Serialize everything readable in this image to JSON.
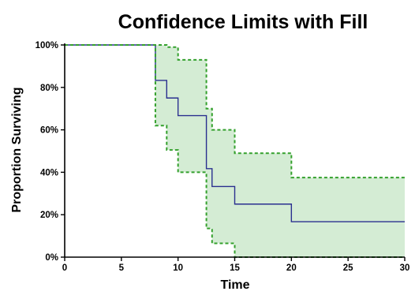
{
  "chart_data": {
    "type": "line",
    "title": "Confidence Limits with Fill",
    "xlabel": "Time",
    "ylabel": "Proportion Surviving",
    "xlim": [
      0,
      30
    ],
    "ylim": [
      0,
      1
    ],
    "xticks": [
      0,
      5,
      10,
      15,
      20,
      25,
      30
    ],
    "xtick_labels": [
      "0",
      "5",
      "10",
      "15",
      "20",
      "25",
      "30"
    ],
    "yticks": [
      0,
      0.2,
      0.4,
      0.6,
      0.8,
      1.0
    ],
    "ytick_labels": [
      "0%",
      "20%",
      "40%",
      "60%",
      "80%",
      "100%"
    ],
    "grid": false,
    "legend": "none",
    "series": [
      {
        "role": "survival",
        "style": "step",
        "color": "#2a2f8f",
        "x": [
          0,
          8,
          9,
          10,
          12,
          12.5,
          13,
          15,
          20,
          30
        ],
        "y": [
          1.0,
          0.833,
          0.75,
          0.667,
          0.667,
          0.417,
          0.333,
          0.25,
          0.167,
          0.167
        ]
      },
      {
        "role": "upper-confidence-limit",
        "style": "step-dashed",
        "color": "#33a02c",
        "x": [
          0,
          8,
          9,
          10,
          12,
          12.5,
          13,
          15,
          20,
          30
        ],
        "y": [
          1.0,
          1.0,
          0.99,
          0.93,
          0.93,
          0.7,
          0.6,
          0.49,
          0.375,
          0.375
        ]
      },
      {
        "role": "lower-confidence-limit",
        "style": "step-dashed",
        "color": "#33a02c",
        "x": [
          0,
          8,
          9,
          10,
          12,
          12.5,
          13,
          15,
          20,
          30
        ],
        "y": [
          1.0,
          0.62,
          0.505,
          0.4,
          0.4,
          0.135,
          0.065,
          0.0,
          0.0,
          0.0
        ]
      }
    ],
    "fill": {
      "between": [
        "upper-confidence-limit",
        "lower-confidence-limit"
      ],
      "color": "#d4ecd4"
    }
  }
}
